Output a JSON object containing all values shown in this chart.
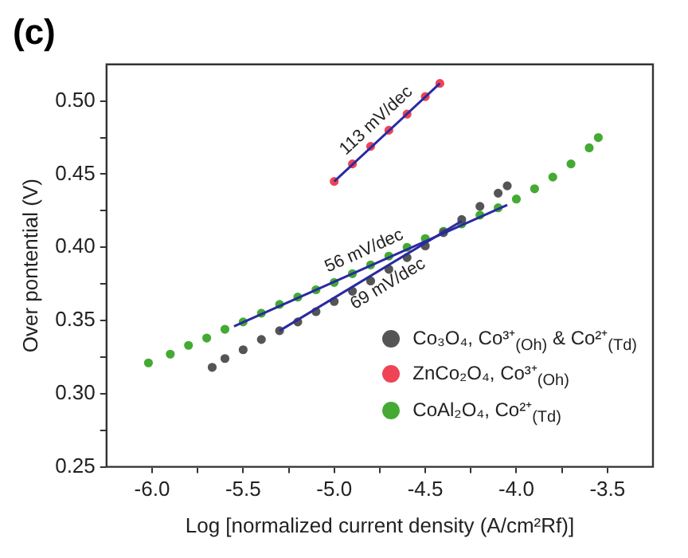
{
  "chart_data": {
    "type": "scatter",
    "title": "(c)",
    "xlabel": "Log [normalized current density (A/cm²Rf)]",
    "ylabel": "Over pontential (V)",
    "xlim": [
      -6.25,
      -3.25
    ],
    "xticks": [
      {
        "value": -6,
        "label": "-6.0"
      },
      {
        "value": -5.75,
        "label": null
      },
      {
        "value": -5.5,
        "label": "-5.5"
      },
      {
        "value": -5.25,
        "label": null
      },
      {
        "value": -5,
        "label": "-5.0"
      },
      {
        "value": -4.75,
        "label": null
      },
      {
        "value": -4.5,
        "label": "-4.5"
      },
      {
        "value": -4.25,
        "label": null
      },
      {
        "value": -4,
        "label": "-4.0"
      },
      {
        "value": -3.75,
        "label": null
      },
      {
        "value": -3.5,
        "label": "-3.5"
      }
    ],
    "ylim": [
      0.25,
      0.525
    ],
    "yticks": [
      {
        "value": 0.25,
        "label": "0.25"
      },
      {
        "value": 0.275,
        "label": null
      },
      {
        "value": 0.3,
        "label": "0.30"
      },
      {
        "value": 0.325,
        "label": null
      },
      {
        "value": 0.35,
        "label": "0.35"
      },
      {
        "value": 0.375,
        "label": null
      },
      {
        "value": 0.4,
        "label": "0.40"
      },
      {
        "value": 0.425,
        "label": null
      },
      {
        "value": 0.45,
        "label": "0.45"
      },
      {
        "value": 0.475,
        "label": null
      },
      {
        "value": 0.5,
        "label": "0.50"
      }
    ],
    "grid": false,
    "legend": "bottom right",
    "marker": "circle",
    "series": [
      {
        "name": "Co₃O₄, Co³⁺$_{(Oh)}$ & Co²⁺$_{(Td)}$",
        "color": "#555555",
        "x": [
          -5.67,
          -5.6,
          -5.5,
          -5.4,
          -5.3,
          -5.2,
          -5.1,
          -5.0,
          -4.9,
          -4.8,
          -4.7,
          -4.6,
          -4.5,
          -4.4,
          -4.3,
          -4.2,
          -4.1,
          -4.05
        ],
        "values": [
          0.318,
          0.324,
          0.33,
          0.337,
          0.343,
          0.349,
          0.356,
          0.363,
          0.37,
          0.377,
          0.385,
          0.393,
          0.401,
          0.41,
          0.419,
          0.428,
          0.437,
          0.442
        ]
      },
      {
        "name": "ZnCo₂O₄, Co³⁺$_{(Oh)}$",
        "color": "#ee4455",
        "x": [
          -5.0,
          -4.9,
          -4.8,
          -4.7,
          -4.6,
          -4.5,
          -4.42
        ],
        "values": [
          0.445,
          0.457,
          0.469,
          0.48,
          0.491,
          0.503,
          0.512
        ]
      },
      {
        "name": "CoAl₂O₄, Co²⁺$_{(Td)}$",
        "color": "#44aa33",
        "x": [
          -6.02,
          -5.9,
          -5.8,
          -5.7,
          -5.6,
          -5.5,
          -5.4,
          -5.3,
          -5.2,
          -5.1,
          -5.0,
          -4.9,
          -4.8,
          -4.7,
          -4.6,
          -4.5,
          -4.4,
          -4.3,
          -4.2,
          -4.1,
          -4.0,
          -3.9,
          -3.8,
          -3.7,
          -3.6,
          -3.55
        ],
        "values": [
          0.321,
          0.327,
          0.333,
          0.338,
          0.344,
          0.349,
          0.355,
          0.361,
          0.366,
          0.371,
          0.376,
          0.382,
          0.388,
          0.394,
          0.4,
          0.406,
          0.411,
          0.416,
          0.422,
          0.427,
          0.433,
          0.44,
          0.448,
          0.457,
          0.468,
          0.475
        ]
      },
      {
        "type": "line",
        "color": "#2a2aa0",
        "marker": "none",
        "x": [
          -5.0,
          -4.42
        ],
        "values": [
          0.445,
          0.512
        ]
      },
      {
        "type": "line",
        "color": "#2a2aa0",
        "marker": "none",
        "x": [
          -5.55,
          -4.05
        ],
        "values": [
          0.346,
          0.429
        ]
      },
      {
        "type": "line",
        "color": "#2a2aa0",
        "marker": "none",
        "x": [
          -5.3,
          -4.3
        ],
        "values": [
          0.343,
          0.418
        ]
      }
    ],
    "annotations": [
      "113 mV/dec",
      "56 mV/dec",
      "69 mV/dec"
    ]
  }
}
